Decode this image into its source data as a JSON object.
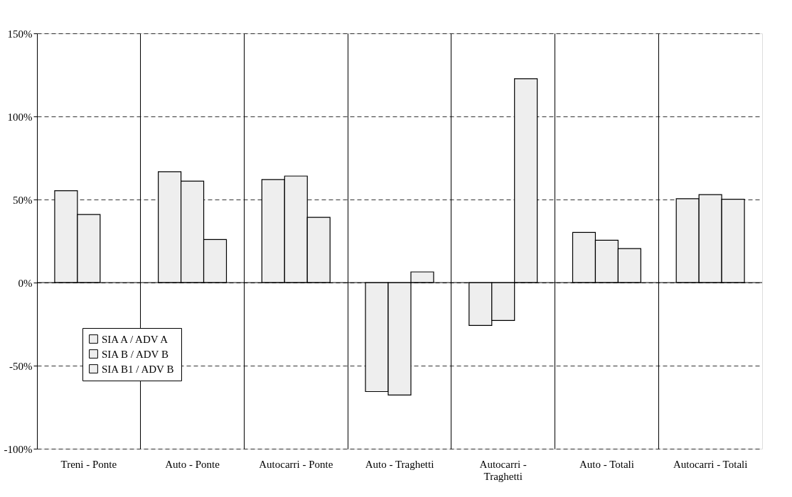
{
  "chart_data": {
    "type": "bar",
    "categories": [
      "Treni - Ponte",
      "Auto - Ponte",
      "Autocarri - Ponte",
      "Auto - Traghetti",
      "Autocarri - Traghetti",
      "Auto - Totali",
      "Autocarri - Totali"
    ],
    "series": [
      {
        "name": "SIA A / ADV A",
        "color": "#eeeeee",
        "values": [
          55.3,
          66.7,
          62.0,
          -65.6,
          -25.8,
          30.2,
          50.5
        ]
      },
      {
        "name": "SIA B / ADV B",
        "color": "#eeeeee",
        "values": [
          41.0,
          61.1,
          64.1,
          -67.7,
          -22.8,
          25.5,
          52.9
        ]
      },
      {
        "name": "SIA B1 / ADV B",
        "color": "#eeeeee",
        "values": [
          null,
          25.9,
          39.3,
          6.4,
          122.7,
          20.5,
          50.2
        ]
      }
    ],
    "ylim": [
      -100,
      150
    ],
    "yticks": [
      {
        "value": -100,
        "label": "-100%"
      },
      {
        "value": -50,
        "label": "-50%"
      },
      {
        "value": 0,
        "label": "0%"
      },
      {
        "value": 50,
        "label": "50%"
      },
      {
        "value": 100,
        "label": "100%"
      },
      {
        "value": 150,
        "label": "150%"
      }
    ],
    "grid": true,
    "legend": "bottom left"
  }
}
